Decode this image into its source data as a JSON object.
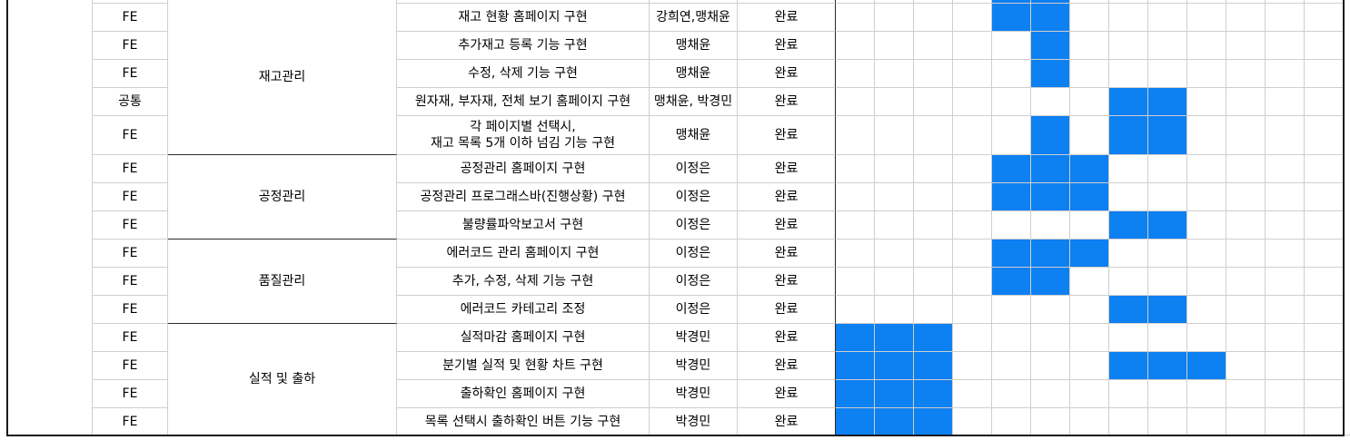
{
  "accent_fill": "#0d80f2",
  "grid_color": "#cfcfcf",
  "border_color": "#2b2b2b",
  "tasks": [
    {
      "part": "FE",
      "desc": "재고 현황 홈페이지 구현",
      "assignee": "강희연,맹채윤",
      "status": "완료",
      "filled": [
        4,
        5
      ]
    },
    {
      "part": "FE",
      "desc": "추가재고 등록 기능 구현",
      "assignee": "맹채윤",
      "status": "완료",
      "filled": [
        5
      ]
    },
    {
      "part": "FE",
      "desc": "수정, 삭제 기능 구현",
      "assignee": "맹채윤",
      "status": "완료",
      "filled": [
        5
      ]
    },
    {
      "part": "공통",
      "desc": "원자재, 부자재, 전체 보기 홈페이지 구현",
      "assignee": "맹채윤, 박경민",
      "status": "완료",
      "filled": [
        7,
        8
      ]
    },
    {
      "part": "FE",
      "desc": "각 페이지별 선택시,\n재고 목록 5개 이하 넘김 기능 구현",
      "assignee": "맹채윤",
      "status": "완료",
      "filled": [
        5,
        7,
        8
      ]
    },
    {
      "part": "FE",
      "desc": "공정관리 홈페이지 구현",
      "assignee": "이정은",
      "status": "완료",
      "filled": [
        4,
        5,
        6
      ]
    },
    {
      "part": "FE",
      "desc": "공정관리 프로그래스바(진행상황) 구현",
      "assignee": "이정은",
      "status": "완료",
      "filled": [
        4,
        5,
        6
      ]
    },
    {
      "part": "FE",
      "desc": "불량률파악보고서 구현",
      "assignee": "이정은",
      "status": "완료",
      "filled": [
        7,
        8
      ]
    },
    {
      "part": "FE",
      "desc": "에러코드 관리 홈페이지 구현",
      "assignee": "이정은",
      "status": "완료",
      "filled": [
        4,
        5,
        6
      ]
    },
    {
      "part": "FE",
      "desc": "추가, 수정, 삭제 기능 구현",
      "assignee": "이정은",
      "status": "완료",
      "filled": [
        4,
        5
      ]
    },
    {
      "part": "FE",
      "desc": "에러코드  카테고리 조정",
      "assignee": "이정은",
      "status": "완료",
      "filled": [
        7,
        8
      ]
    },
    {
      "part": "FE",
      "desc": "실적마감 홈페이지 구현",
      "assignee": "박경민",
      "status": "완료",
      "filled": [
        0,
        1,
        2
      ]
    },
    {
      "part": "FE",
      "desc": "분기별 실적 및 현황 차트 구현",
      "assignee": "박경민",
      "status": "완료",
      "filled": [
        0,
        1,
        2,
        7,
        8,
        9
      ]
    },
    {
      "part": "FE",
      "desc": "출하확인 홈페이지 구현",
      "assignee": "박경민",
      "status": "완료",
      "filled": [
        0,
        1,
        2
      ]
    },
    {
      "part": "FE",
      "desc": "목록 선택시 출하확인 버튼 기능 구현",
      "assignee": "박경민",
      "status": "완료",
      "filled": [
        0,
        1,
        2
      ]
    }
  ],
  "groups": [
    {
      "label": "재고관리",
      "start": 0,
      "span": 5
    },
    {
      "label": "공정관리",
      "start": 5,
      "span": 3
    },
    {
      "label": "품질관리",
      "start": 8,
      "span": 3
    },
    {
      "label": "실적 및 출하",
      "start": 11,
      "span": 4
    }
  ],
  "gantt_columns": 13
}
